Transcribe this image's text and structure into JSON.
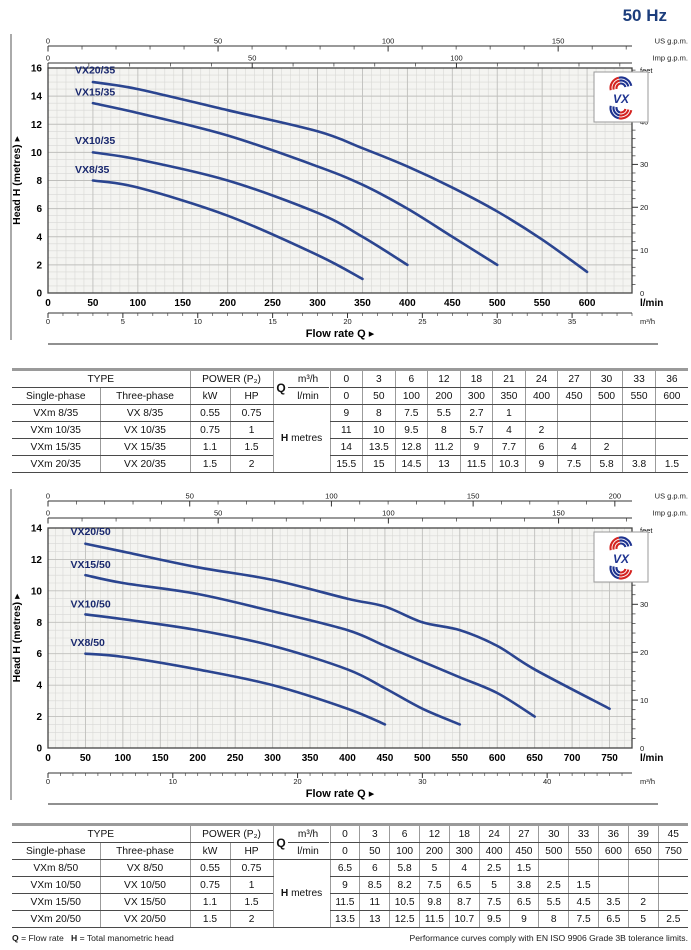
{
  "page": {
    "frequency": "50 Hz",
    "footer": {
      "q_sym": "Q",
      "q_text": "= Flow rate",
      "h_sym": "H",
      "h_text": "= Total manometric head",
      "note": "Performance curves comply with EN ISO 9906 Grade 3B tolerance limits."
    }
  },
  "chart_data": [
    {
      "type": "line",
      "ylabel": "Head H (metres)",
      "xlabel": "Flow rate Q",
      "x_unit": "l/min",
      "x2_unit": "m³/h",
      "us_unit": "US g.p.m.",
      "imp_unit": "Imp g.p.m.",
      "feet_unit": "feet",
      "xlim": [
        0,
        650
      ],
      "ylim": [
        0,
        16
      ],
      "x_major": 50,
      "x_minor": 10,
      "y_major": 2,
      "y_minor": 0.5,
      "x_ticks": [
        0,
        50,
        100,
        150,
        200,
        250,
        300,
        350,
        400,
        450,
        500,
        550,
        600
      ],
      "y_ticks": [
        0,
        2,
        4,
        6,
        8,
        10,
        12,
        14,
        16
      ],
      "x2_label_step": 5,
      "us_labels": [
        0,
        50,
        100,
        150
      ],
      "imp_labels": [
        0,
        50,
        100
      ],
      "feet_labels": [
        10,
        20,
        30,
        40,
        50
      ],
      "curve_color": "#2b4590",
      "label_color": "#19286e",
      "logo_text": "VX",
      "series": [
        {
          "name": "VX20/35",
          "x": [
            50,
            100,
            200,
            300,
            350,
            400,
            450,
            500,
            550,
            600
          ],
          "y": [
            15,
            14.5,
            13,
            11.5,
            10.3,
            9,
            7.5,
            5.8,
            3.8,
            1.5
          ],
          "label_at": [
            30,
            15.6
          ]
        },
        {
          "name": "VX15/35",
          "x": [
            50,
            100,
            200,
            300,
            350,
            400,
            450,
            500
          ],
          "y": [
            13.5,
            12.8,
            11.2,
            9,
            7.7,
            6,
            4,
            2
          ],
          "label_at": [
            30,
            14.05
          ]
        },
        {
          "name": "VX10/35",
          "x": [
            50,
            100,
            200,
            300,
            350,
            400
          ],
          "y": [
            10,
            9.5,
            8,
            5.7,
            4,
            2
          ],
          "label_at": [
            30,
            10.6
          ]
        },
        {
          "name": "VX8/35",
          "x": [
            50,
            100,
            200,
            300,
            350
          ],
          "y": [
            8,
            7.5,
            5.5,
            2.7,
            1
          ],
          "label_at": [
            30,
            8.55
          ]
        }
      ]
    },
    {
      "type": "line",
      "ylabel": "Head H (metres)",
      "xlabel": "Flow rate Q",
      "x_unit": "l/min",
      "x2_unit": "m³/h",
      "us_unit": "US g.p.m.",
      "imp_unit": "Imp g.p.m.",
      "feet_unit": "feet",
      "xlim": [
        0,
        780
      ],
      "ylim": [
        0,
        14
      ],
      "x_major": 50,
      "x_minor": 10,
      "y_major": 2,
      "y_minor": 0.5,
      "x_ticks": [
        0,
        50,
        100,
        150,
        200,
        250,
        300,
        350,
        400,
        450,
        500,
        550,
        600,
        650,
        700,
        750
      ],
      "y_ticks": [
        0,
        2,
        4,
        6,
        8,
        10,
        12,
        14
      ],
      "x2_label_step": 10,
      "us_labels": [
        0,
        50,
        100,
        150,
        200
      ],
      "imp_labels": [
        0,
        50,
        100,
        150
      ],
      "feet_labels": [
        10,
        20,
        30,
        40
      ],
      "curve_color": "#2b4590",
      "label_color": "#19286e",
      "logo_text": "VX",
      "series": [
        {
          "name": "VX20/50",
          "x": [
            50,
            100,
            200,
            300,
            400,
            450,
            500,
            550,
            600,
            650,
            750
          ],
          "y": [
            13,
            12.5,
            11.5,
            10.7,
            9.5,
            9,
            8,
            7.5,
            6.5,
            5,
            2.5
          ],
          "label_at": [
            30,
            13.55
          ]
        },
        {
          "name": "VX15/50",
          "x": [
            50,
            100,
            200,
            300,
            400,
            450,
            500,
            550,
            600,
            650
          ],
          "y": [
            11,
            10.5,
            9.8,
            8.7,
            7.5,
            6.5,
            5.5,
            4.5,
            3.5,
            2
          ],
          "label_at": [
            30,
            11.45
          ]
        },
        {
          "name": "VX10/50",
          "x": [
            50,
            100,
            200,
            300,
            400,
            450,
            500,
            550
          ],
          "y": [
            8.5,
            8.2,
            7.5,
            6.5,
            5,
            3.8,
            2.5,
            1.5
          ],
          "label_at": [
            30,
            8.95
          ]
        },
        {
          "name": "VX8/50",
          "x": [
            50,
            100,
            200,
            300,
            400,
            450
          ],
          "y": [
            6,
            5.8,
            5,
            4,
            2.5,
            1.5
          ],
          "label_at": [
            30,
            6.5
          ]
        }
      ]
    }
  ],
  "tables": [
    {
      "headers": {
        "type": "TYPE",
        "power": "POWER (P₂)",
        "single": "Single-phase",
        "three": "Three-phase",
        "kw": "kW",
        "hp": "HP",
        "q": "Q",
        "q_unit1": "m³/h",
        "q_unit2": "l/min",
        "h": "H",
        "h_unit": "metres"
      },
      "m3h": [
        "0",
        "3",
        "6",
        "12",
        "18",
        "21",
        "24",
        "27",
        "30",
        "33",
        "36"
      ],
      "lmin": [
        "0",
        "50",
        "100",
        "200",
        "300",
        "350",
        "400",
        "450",
        "500",
        "550",
        "600"
      ],
      "rows": [
        {
          "single": "VXm 8/35",
          "three": "VX 8/35",
          "kw": "0.55",
          "hp": "0.75",
          "h": [
            "9",
            "8",
            "7.5",
            "5.5",
            "2.7",
            "1",
            "",
            "",
            "",
            "",
            ""
          ]
        },
        {
          "single": "VXm 10/35",
          "three": "VX 10/35",
          "kw": "0.75",
          "hp": "1",
          "h": [
            "11",
            "10",
            "9.5",
            "8",
            "5.7",
            "4",
            "2",
            "",
            "",
            "",
            ""
          ]
        },
        {
          "single": "VXm 15/35",
          "three": "VX 15/35",
          "kw": "1.1",
          "hp": "1.5",
          "h": [
            "14",
            "13.5",
            "12.8",
            "11.2",
            "9",
            "7.7",
            "6",
            "4",
            "2",
            "",
            ""
          ]
        },
        {
          "single": "VXm 20/35",
          "three": "VX 20/35",
          "kw": "1.5",
          "hp": "2",
          "h": [
            "15.5",
            "15",
            "14.5",
            "13",
            "11.5",
            "10.3",
            "9",
            "7.5",
            "5.8",
            "3.8",
            "1.5"
          ]
        }
      ]
    },
    {
      "headers": {
        "type": "TYPE",
        "power": "POWER (P₂)",
        "single": "Single-phase",
        "three": "Three-phase",
        "kw": "kW",
        "hp": "HP",
        "q": "Q",
        "q_unit1": "m³/h",
        "q_unit2": "l/min",
        "h": "H",
        "h_unit": "metres"
      },
      "m3h": [
        "0",
        "3",
        "6",
        "12",
        "18",
        "24",
        "27",
        "30",
        "33",
        "36",
        "39",
        "45"
      ],
      "lmin": [
        "0",
        "50",
        "100",
        "200",
        "300",
        "400",
        "450",
        "500",
        "550",
        "600",
        "650",
        "750"
      ],
      "rows": [
        {
          "single": "VXm 8/50",
          "three": "VX 8/50",
          "kw": "0.55",
          "hp": "0.75",
          "h": [
            "6.5",
            "6",
            "5.8",
            "5",
            "4",
            "2.5",
            "1.5",
            "",
            "",
            "",
            "",
            ""
          ]
        },
        {
          "single": "VXm 10/50",
          "three": "VX 10/50",
          "kw": "0.75",
          "hp": "1",
          "h": [
            "9",
            "8.5",
            "8.2",
            "7.5",
            "6.5",
            "5",
            "3.8",
            "2.5",
            "1.5",
            "",
            "",
            ""
          ]
        },
        {
          "single": "VXm 15/50",
          "three": "VX 15/50",
          "kw": "1.1",
          "hp": "1.5",
          "h": [
            "11.5",
            "11",
            "10.5",
            "9.8",
            "8.7",
            "7.5",
            "6.5",
            "5.5",
            "4.5",
            "3.5",
            "2",
            ""
          ]
        },
        {
          "single": "VXm 20/50",
          "three": "VX 20/50",
          "kw": "1.5",
          "hp": "2",
          "h": [
            "13.5",
            "13",
            "12.5",
            "11.5",
            "10.7",
            "9.5",
            "9",
            "8",
            "7.5",
            "6.5",
            "5",
            "2.5"
          ]
        }
      ]
    }
  ]
}
